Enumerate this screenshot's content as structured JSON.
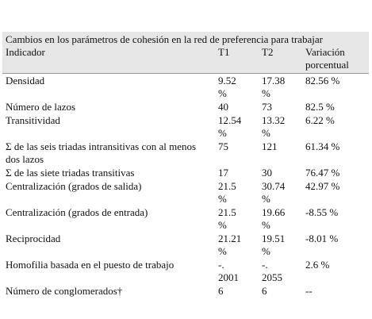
{
  "table": {
    "caption": "Cambios en los parámetros de cohesión en la red de preferencia para trabajar",
    "header": [
      "Indicador",
      "T1",
      "T2",
      "Variación porcentual"
    ],
    "rows": [
      [
        "Densidad",
        "9.52 %",
        "17.38 %",
        "82.56 %"
      ],
      [
        "Número de lazos",
        "40",
        "73",
        "82.5 %"
      ],
      [
        "Transitividad",
        "12.54 %",
        "13.32 %",
        "6.22 %"
      ],
      [
        "Σ de las seis triadas intransitivas con al menos dos lazos",
        "75",
        "121",
        "61.34 %"
      ],
      [
        "Σ de las siete triadas transitivas",
        "17",
        "30",
        "76.47 %"
      ],
      [
        "Centralización (grados de salida)",
        "21.5 %",
        "30.74 %",
        "42.97 %"
      ],
      [
        "Centralización (grados de entrada)",
        "21.5 %",
        "19.66 %",
        "-8.55 %"
      ],
      [
        "Reciprocidad",
        "21.21 %",
        "19.51 %",
        "-8.01 %"
      ],
      [
        "Homofilia basada en el puesto de trabajo",
        "-. 2001",
        "-. 2055",
        "2.6 %"
      ],
      [
        "Número de conglomerados†",
        "6",
        "6",
        "--"
      ]
    ]
  }
}
